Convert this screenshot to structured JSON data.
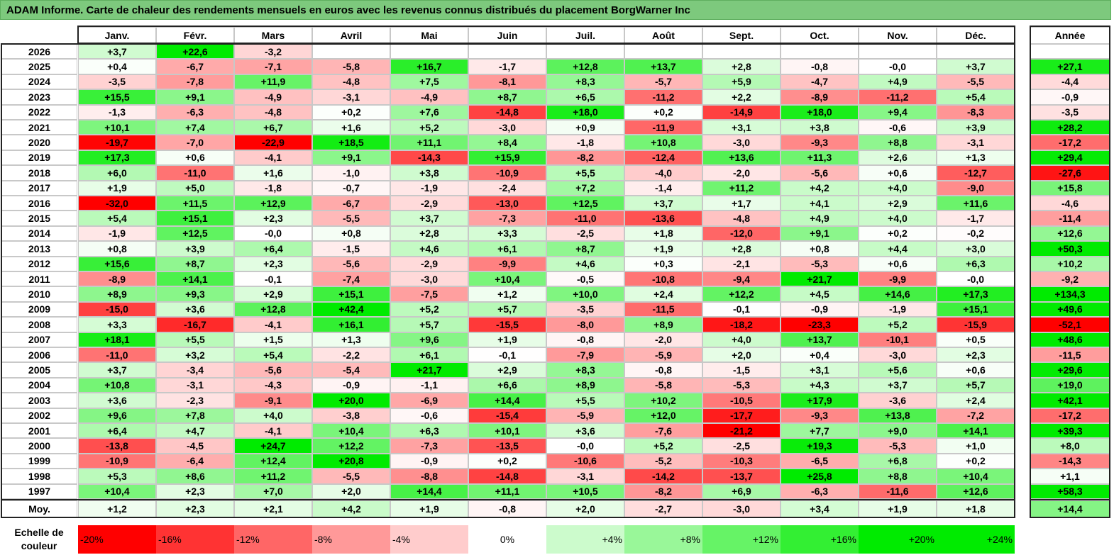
{
  "title": "ADAM Informe. Carte de chaleur des rendements mensuels en euros avec les revenus connus distribués du placement BorgWarner Inc",
  "chart_data": {
    "type": "heatmap",
    "title": "ADAM Informe. Carte de chaleur des rendements mensuels en euros avec les revenus connus distribués du placement BorgWarner Inc",
    "months": [
      "Janv.",
      "Févr.",
      "Mars",
      "Avril",
      "Mai",
      "Juin",
      "Juil.",
      "Août",
      "Sept.",
      "Oct.",
      "Nov.",
      "Déc."
    ],
    "year_column_label": "Année",
    "rows": [
      {
        "year": "2026",
        "values": [
          "+3,7",
          "+22,6",
          "-3,2",
          "",
          "",
          "",
          "",
          "",
          "",
          "",
          "",
          ""
        ],
        "annual": ""
      },
      {
        "year": "2025",
        "values": [
          "+0,4",
          "-6,7",
          "-7,1",
          "-5,8",
          "+16,7",
          "-1,7",
          "+12,8",
          "+13,7",
          "+2,8",
          "-0,8",
          "-0,0",
          "+3,7"
        ],
        "annual": "+27,1"
      },
      {
        "year": "2024",
        "values": [
          "-3,5",
          "-7,8",
          "+11,9",
          "-4,8",
          "+7,5",
          "-8,1",
          "+8,3",
          "-5,7",
          "+5,9",
          "-4,7",
          "+4,9",
          "-5,5"
        ],
        "annual": "-4,4"
      },
      {
        "year": "2023",
        "values": [
          "+15,5",
          "+9,1",
          "-4,9",
          "-3,1",
          "-4,9",
          "+8,7",
          "+6,5",
          "-11,2",
          "+2,2",
          "-8,9",
          "-11,2",
          "+5,4"
        ],
        "annual": "-0,9"
      },
      {
        "year": "2022",
        "values": [
          "-1,3",
          "-6,3",
          "-4,8",
          "+0,2",
          "+7,6",
          "-14,8",
          "+18,0",
          "+0,2",
          "-14,9",
          "+18,0",
          "+9,4",
          "-8,3"
        ],
        "annual": "-3,5"
      },
      {
        "year": "2021",
        "values": [
          "+10,1",
          "+7,4",
          "+6,7",
          "+1,6",
          "+5,2",
          "-3,0",
          "+0,9",
          "-11,9",
          "+3,1",
          "+3,8",
          "-0,6",
          "+3,9"
        ],
        "annual": "+28,2"
      },
      {
        "year": "2020",
        "values": [
          "-19,7",
          "-7,0",
          "-22,9",
          "+18,5",
          "+11,1",
          "+8,4",
          "-1,8",
          "+10,8",
          "-3,0",
          "-9,3",
          "+8,8",
          "-3,1"
        ],
        "annual": "-17,2"
      },
      {
        "year": "2019",
        "values": [
          "+17,3",
          "+0,6",
          "-4,1",
          "+9,1",
          "-14,3",
          "+15,9",
          "-8,2",
          "-12,4",
          "+13,6",
          "+11,3",
          "+2,6",
          "+1,3"
        ],
        "annual": "+29,4"
      },
      {
        "year": "2018",
        "values": [
          "+6,0",
          "-11,0",
          "+1,6",
          "-1,0",
          "+3,8",
          "-10,9",
          "+5,5",
          "-4,0",
          "-2,0",
          "-5,6",
          "+0,6",
          "-12,7"
        ],
        "annual": "-27,6"
      },
      {
        "year": "2017",
        "values": [
          "+1,9",
          "+5,0",
          "-1,8",
          "-0,7",
          "-1,9",
          "-2,4",
          "+7,2",
          "-1,4",
          "+11,2",
          "+4,2",
          "+4,0",
          "-9,0"
        ],
        "annual": "+15,8"
      },
      {
        "year": "2016",
        "values": [
          "-32,0",
          "+11,5",
          "+12,9",
          "-6,7",
          "-2,9",
          "-13,0",
          "+12,5",
          "+3,7",
          "+1,7",
          "+4,1",
          "+2,9",
          "+11,6"
        ],
        "annual": "-4,6"
      },
      {
        "year": "2015",
        "values": [
          "+5,4",
          "+15,1",
          "+2,3",
          "-5,5",
          "+3,7",
          "-7,3",
          "-11,0",
          "-13,6",
          "-4,8",
          "+4,9",
          "+4,0",
          "-1,7"
        ],
        "annual": "-11,4"
      },
      {
        "year": "2014",
        "values": [
          "-1,9",
          "+12,5",
          "-0,0",
          "+0,8",
          "+2,8",
          "+3,3",
          "-2,5",
          "+1,8",
          "-12,0",
          "+9,1",
          "+0,2",
          "-0,2"
        ],
        "annual": "+12,6"
      },
      {
        "year": "2013",
        "values": [
          "+0,8",
          "+3,9",
          "+6,4",
          "-1,5",
          "+4,6",
          "+6,1",
          "+8,7",
          "+1,9",
          "+2,8",
          "+0,8",
          "+4,4",
          "+3,0"
        ],
        "annual": "+50,3"
      },
      {
        "year": "2012",
        "values": [
          "+15,6",
          "+8,7",
          "+2,3",
          "-5,6",
          "-2,9",
          "-9,9",
          "+4,6",
          "+0,3",
          "-2,1",
          "-5,3",
          "+0,6",
          "+6,3"
        ],
        "annual": "+10,2"
      },
      {
        "year": "2011",
        "values": [
          "-8,9",
          "+14,1",
          "-0,1",
          "-7,4",
          "-3,0",
          "+10,4",
          "-0,5",
          "-10,8",
          "-9,4",
          "+21,7",
          "-9,9",
          "-0,0"
        ],
        "annual": "-9,2"
      },
      {
        "year": "2010",
        "values": [
          "+8,9",
          "+9,3",
          "+2,9",
          "+15,1",
          "-7,5",
          "+1,2",
          "+10,0",
          "+2,4",
          "+12,2",
          "+4,5",
          "+14,6",
          "+17,3"
        ],
        "annual": "+134,3"
      },
      {
        "year": "2009",
        "values": [
          "-15,0",
          "+3,6",
          "+12,8",
          "+42,4",
          "+5,2",
          "+5,7",
          "-3,5",
          "-11,5",
          "-0,1",
          "-0,9",
          "-1,9",
          "+15,1"
        ],
        "annual": "+49,6"
      },
      {
        "year": "2008",
        "values": [
          "+3,3",
          "-16,7",
          "-4,1",
          "+16,1",
          "+5,7",
          "-15,5",
          "-8,0",
          "+8,9",
          "-18,2",
          "-23,3",
          "+5,2",
          "-15,9"
        ],
        "annual": "-52,1"
      },
      {
        "year": "2007",
        "values": [
          "+18,1",
          "+5,5",
          "+1,5",
          "+1,3",
          "+9,6",
          "+1,9",
          "-0,8",
          "-2,0",
          "+4,0",
          "+13,7",
          "-10,1",
          "+0,5"
        ],
        "annual": "+48,6"
      },
      {
        "year": "2006",
        "values": [
          "-11,0",
          "+3,2",
          "+5,4",
          "-2,2",
          "+6,1",
          "-0,1",
          "-7,9",
          "-5,9",
          "+2,0",
          "+0,4",
          "-3,0",
          "+2,3"
        ],
        "annual": "-11,5"
      },
      {
        "year": "2005",
        "values": [
          "+3,7",
          "-3,4",
          "-5,6",
          "-5,4",
          "+21,7",
          "+2,9",
          "+8,3",
          "-0,8",
          "-1,5",
          "+3,1",
          "+5,6",
          "+0,6"
        ],
        "annual": "+29,6"
      },
      {
        "year": "2004",
        "values": [
          "+10,8",
          "-3,1",
          "-4,3",
          "-0,9",
          "-1,1",
          "+6,6",
          "+8,9",
          "-5,8",
          "-5,3",
          "+4,3",
          "+3,7",
          "+5,7"
        ],
        "annual": "+19,0"
      },
      {
        "year": "2003",
        "values": [
          "+3,6",
          "-2,3",
          "-9,1",
          "+20,0",
          "-6,9",
          "+14,4",
          "+5,5",
          "+10,2",
          "-10,5",
          "+17,9",
          "-3,6",
          "+2,4"
        ],
        "annual": "+42,1"
      },
      {
        "year": "2002",
        "values": [
          "+9,6",
          "+7,8",
          "+4,0",
          "-3,8",
          "-0,6",
          "-15,4",
          "-5,9",
          "+12,0",
          "-17,7",
          "-9,3",
          "+13,8",
          "-7,2"
        ],
        "annual": "-17,2"
      },
      {
        "year": "2001",
        "values": [
          "+6,4",
          "+4,7",
          "-4,1",
          "+10,4",
          "+6,3",
          "+10,1",
          "+3,6",
          "-7,6",
          "-21,2",
          "+7,7",
          "+9,0",
          "+14,1"
        ],
        "annual": "+39,3"
      },
      {
        "year": "2000",
        "values": [
          "-13,8",
          "-4,5",
          "+24,7",
          "+12,2",
          "-7,3",
          "-13,5",
          "-0,0",
          "+5,2",
          "-2,5",
          "+19,3",
          "-5,3",
          "+1,0"
        ],
        "annual": "+8,0"
      },
      {
        "year": "1999",
        "values": [
          "-10,9",
          "-6,4",
          "+12,4",
          "+20,8",
          "-0,9",
          "+0,2",
          "-10,6",
          "-5,2",
          "-10,3",
          "-6,5",
          "+6,8",
          "+0,2"
        ],
        "annual": "-14,3"
      },
      {
        "year": "1998",
        "values": [
          "+5,3",
          "+8,6",
          "+11,2",
          "-5,5",
          "-8,8",
          "-14,8",
          "-3,1",
          "-14,2",
          "-13,7",
          "+25,8",
          "+8,8",
          "+10,4"
        ],
        "annual": "+1,1"
      },
      {
        "year": "1997",
        "values": [
          "+10,4",
          "+2,3",
          "+7,0",
          "+2,0",
          "+14,4",
          "+11,1",
          "+10,5",
          "-8,2",
          "+6,9",
          "-6,3",
          "-11,6",
          "+12,6"
        ],
        "annual": "+58,3"
      }
    ],
    "average_row": {
      "label": "Moy.",
      "values": [
        "+1,2",
        "+2,3",
        "+2,1",
        "+4,2",
        "+1,9",
        "-0,8",
        "+2,0",
        "-2,7",
        "-3,0",
        "+3,4",
        "+1,9",
        "+1,8"
      ],
      "annual": "+14,4"
    },
    "legend": {
      "label": "Echelle de couleur",
      "steps": [
        "-20%",
        "-16%",
        "-12%",
        "-8%",
        "-4%",
        "0%",
        "+4%",
        "+8%",
        "+12%",
        "+16%",
        "+20%",
        "+24%"
      ],
      "step_values": [
        -20,
        -16,
        -12,
        -8,
        -4,
        0,
        4,
        8,
        12,
        16,
        20,
        24
      ]
    },
    "colors": {
      "negative": "#ff0000",
      "neutral": "#ffffff",
      "positive": "#00e600",
      "title_bar": "#7dc97d"
    }
  }
}
